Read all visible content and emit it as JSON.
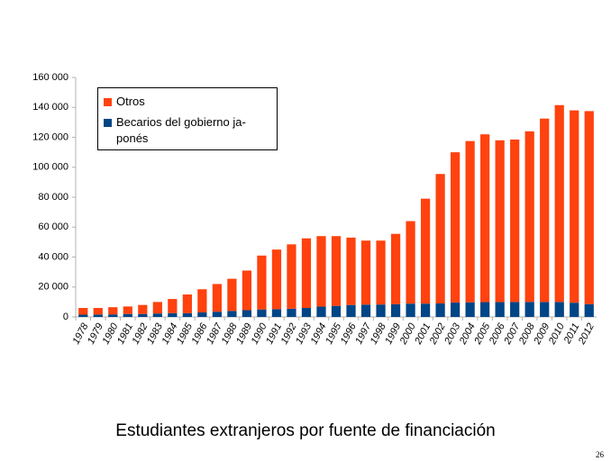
{
  "chart_data": {
    "type": "stacked_bar",
    "title": "Estudiantes extranjeros por fuente de financiación",
    "page_number": "26",
    "categories": [
      "1978",
      "1979",
      "1980",
      "1981",
      "1982",
      "1983",
      "1984",
      "1985",
      "1986",
      "1987",
      "1988",
      "1989",
      "1990",
      "1991",
      "1992",
      "1993",
      "1994",
      "1995",
      "1996",
      "1997",
      "1998",
      "1999",
      "2000",
      "2001",
      "2002",
      "2003",
      "2004",
      "2005",
      "2006",
      "2007",
      "2008",
      "2009",
      "2010",
      "2011",
      "2012"
    ],
    "series": [
      {
        "name": "Becarios del gobierno ja-\nponés",
        "color": "#004586",
        "values": [
          1500,
          1600,
          1700,
          2000,
          2000,
          2300,
          2500,
          2500,
          3000,
          3500,
          4000,
          4500,
          5000,
          5200,
          5500,
          6000,
          6900,
          7400,
          8000,
          8250,
          8300,
          8500,
          8900,
          8900,
          9000,
          9700,
          9800,
          9900,
          9900,
          10000,
          10000,
          10000,
          10000,
          9500,
          8500
        ]
      },
      {
        "name": "Otros",
        "color": "#ff420e",
        "values": [
          4500,
          4400,
          4800,
          5000,
          6000,
          7700,
          9500,
          12500,
          15500,
          18500,
          21500,
          26500,
          36000,
          39800,
          43000,
          46500,
          47100,
          46600,
          45000,
          42750,
          42700,
          47000,
          55100,
          70100,
          86500,
          100300,
          107700,
          112100,
          108100,
          108500,
          114000,
          122500,
          131500,
          128500,
          129000
        ]
      }
    ],
    "ylim": [
      0,
      160000
    ],
    "yticks": [
      0,
      {
        "value": 20000,
        "label": "20 000"
      },
      {
        "value": 40000,
        "label": "40 000"
      },
      {
        "value": 60000,
        "label": "60 000"
      },
      {
        "value": 80000,
        "label": "80 000"
      },
      {
        "value": 100000,
        "label": "100 000"
      },
      {
        "value": 120000,
        "label": "120 000"
      },
      {
        "value": 140000,
        "label": "140 000"
      },
      {
        "value": 160000,
        "label": "160 000"
      }
    ],
    "grid": false,
    "legend": "top-left"
  }
}
